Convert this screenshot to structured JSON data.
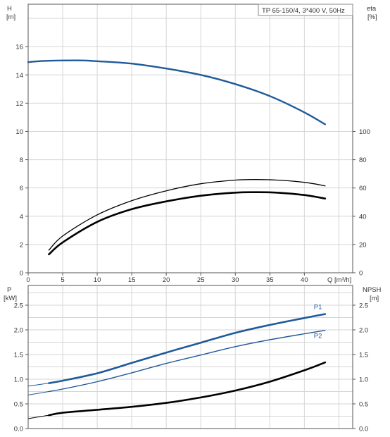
{
  "chart_data": [
    {
      "type": "line",
      "legend_text": "TP 65-150/4, 3*400 V, 50Hz",
      "xlabel": "Q [m³/h]",
      "xlim": [
        0,
        47
      ],
      "xticks": [
        0,
        5,
        10,
        15,
        20,
        25,
        30,
        35,
        40
      ],
      "y_left": {
        "label": "H",
        "unit": "[m]",
        "lim": [
          0,
          19
        ],
        "ticks": [
          0,
          2,
          4,
          6,
          8,
          10,
          12,
          14,
          16
        ]
      },
      "y_right": {
        "label": "eta",
        "unit": "[%]",
        "lim": [
          0,
          190
        ],
        "ticks": [
          0,
          20,
          40,
          60,
          80,
          100
        ]
      },
      "grid": true,
      "series": [
        {
          "key": "H",
          "axis": "left",
          "color": "#1f5a99",
          "width": 2.4,
          "x": [
            0,
            2,
            5,
            8,
            10,
            15,
            20,
            25,
            30,
            35,
            40,
            43
          ],
          "y": [
            14.9,
            14.98,
            15.02,
            15.02,
            14.97,
            14.8,
            14.45,
            14.0,
            13.35,
            12.5,
            11.35,
            10.5
          ]
        },
        {
          "key": "eta_upper",
          "axis": "right",
          "color": "#000000",
          "width": 1.3,
          "x": [
            3,
            5,
            10,
            15,
            20,
            25,
            30,
            33,
            36,
            40,
            43
          ],
          "y": [
            16,
            26,
            41,
            51,
            58,
            63,
            65.6,
            66,
            65.6,
            64,
            61.5
          ]
        },
        {
          "key": "eta_lower",
          "axis": "right",
          "color": "#000000",
          "width": 2.6,
          "x": [
            3,
            5,
            10,
            15,
            20,
            25,
            30,
            33,
            36,
            40,
            43
          ],
          "y": [
            13,
            21.5,
            36,
            45,
            50.5,
            54.5,
            56.7,
            57,
            56.7,
            55,
            52.5
          ]
        }
      ]
    },
    {
      "type": "line",
      "xlim": [
        0,
        47
      ],
      "y_left": {
        "label": "P",
        "unit": "[kW]",
        "lim": [
          0,
          2.9
        ],
        "ticks": [
          "0.0",
          "0.5",
          "1.0",
          "1.5",
          "2.0",
          "2.5"
        ]
      },
      "y_right": {
        "label": "NPSH",
        "unit": "[m]",
        "lim": [
          0,
          2.9
        ],
        "ticks": [
          "0.0",
          "0.5",
          "1.0",
          "1.5",
          "2.0",
          "2.5"
        ]
      },
      "grid": true,
      "series": [
        {
          "key": "p1_left",
          "axis": "left",
          "color": "#1f5a99",
          "width": 1.0,
          "x": [
            0,
            3
          ],
          "y": [
            0.86,
            0.92
          ]
        },
        {
          "key": "P1",
          "name": "P1",
          "axis": "left",
          "color": "#1f5a99",
          "width": 2.6,
          "x": [
            3,
            5,
            10,
            15,
            20,
            25,
            30,
            35,
            40,
            43
          ],
          "y": [
            0.92,
            0.97,
            1.12,
            1.33,
            1.54,
            1.74,
            1.94,
            2.1,
            2.24,
            2.32
          ]
        },
        {
          "key": "p2_left",
          "axis": "left",
          "color": "#1f5a99",
          "width": 1.0,
          "x": [
            0,
            3
          ],
          "y": [
            0.68,
            0.75
          ]
        },
        {
          "key": "P2",
          "name": "P2",
          "axis": "left",
          "color": "#1f5a99",
          "width": 1.4,
          "x": [
            3,
            5,
            10,
            15,
            20,
            25,
            30,
            35,
            40,
            43
          ],
          "y": [
            0.75,
            0.8,
            0.95,
            1.13,
            1.32,
            1.49,
            1.66,
            1.8,
            1.92,
            1.99
          ]
        },
        {
          "key": "npsh_left",
          "axis": "right",
          "color": "#000000",
          "width": 1.0,
          "x": [
            0,
            3
          ],
          "y": [
            0.2,
            0.27
          ]
        },
        {
          "key": "NPSH",
          "axis": "right",
          "color": "#000000",
          "width": 2.6,
          "x": [
            3,
            5,
            10,
            15,
            20,
            25,
            30,
            35,
            40,
            43
          ],
          "y": [
            0.27,
            0.32,
            0.38,
            0.44,
            0.52,
            0.63,
            0.77,
            0.95,
            1.18,
            1.34
          ]
        }
      ]
    }
  ]
}
